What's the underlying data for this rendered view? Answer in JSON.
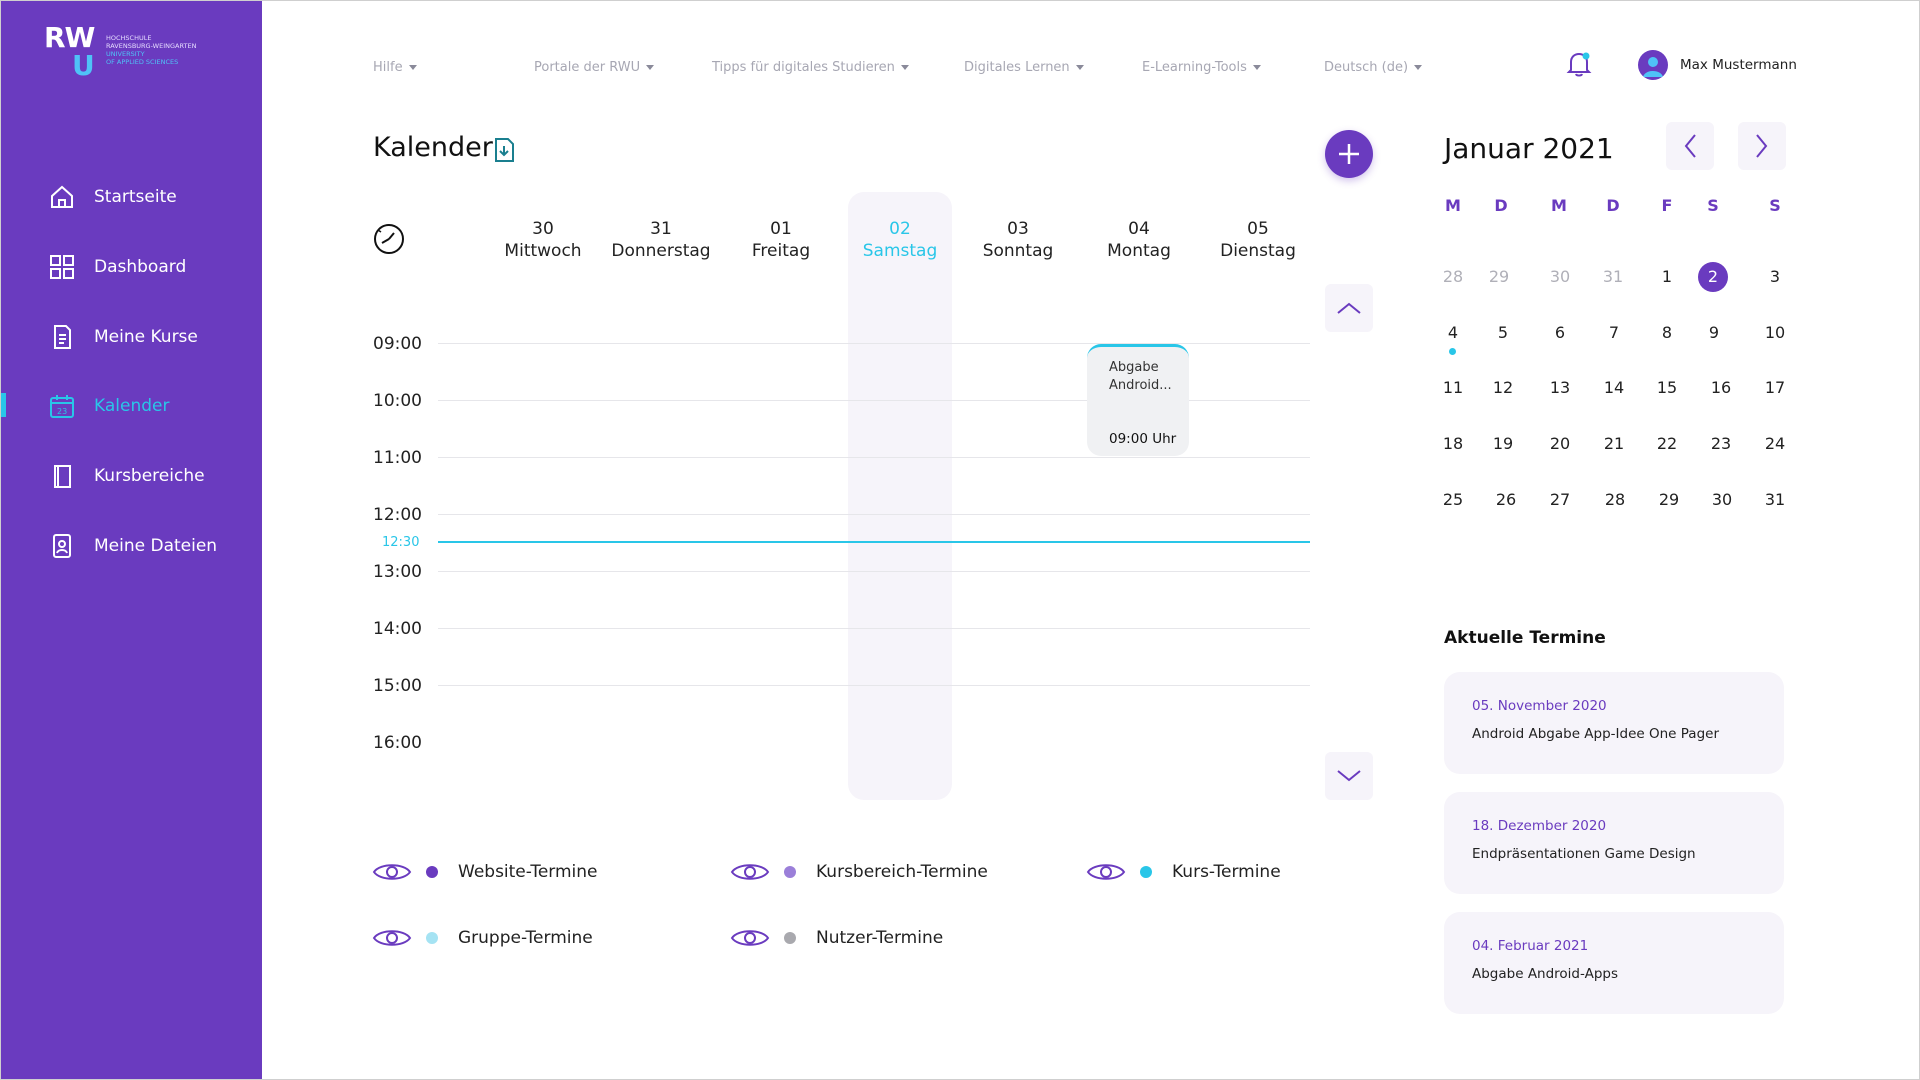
{
  "brand": {
    "logo_mark_top": "RW",
    "logo_mark_bottom": "U",
    "logo_lines": [
      "HOCHSCHULE",
      "RAVENSBURG-WEINGARTEN",
      "UNIVERSITY",
      "OF APPLIED SCIENCES"
    ]
  },
  "colors": {
    "primary": "#6a3bbf",
    "accent": "#29c6e8",
    "today_bg": "#f6f4fa"
  },
  "sidebar": {
    "items": [
      {
        "label": "Startseite",
        "icon": "home-icon"
      },
      {
        "label": "Dashboard",
        "icon": "dashboard-icon"
      },
      {
        "label": "Meine Kurse",
        "icon": "document-icon"
      },
      {
        "label": "Kalender",
        "icon": "calendar-icon",
        "active": true
      },
      {
        "label": "Kursbereiche",
        "icon": "book-icon"
      },
      {
        "label": "Meine Dateien",
        "icon": "files-icon"
      }
    ]
  },
  "topnav": {
    "items": [
      "Hilfe",
      "Portale der RWU",
      "Tipps für digitales Studieren",
      "Digitales Lernen",
      "E-Learning-Tools",
      "Deutsch (de)"
    ],
    "user_name": "Max Mustermann"
  },
  "calendar": {
    "title": "Kalender",
    "days": [
      {
        "num": "30",
        "name": "Mittwoch"
      },
      {
        "num": "31",
        "name": "Donnerstag"
      },
      {
        "num": "01",
        "name": "Freitag"
      },
      {
        "num": "02",
        "name": "Samstag",
        "today": true
      },
      {
        "num": "03",
        "name": "Sonntag"
      },
      {
        "num": "04",
        "name": "Montag"
      },
      {
        "num": "05",
        "name": "Dienstag"
      }
    ],
    "times": [
      "09:00",
      "10:00",
      "11:00",
      "12:00",
      "13:00",
      "14:00",
      "15:00",
      "16:00"
    ],
    "now_label": "12:30",
    "event": {
      "title": "Abgabe Android...",
      "time": "09:00 Uhr"
    }
  },
  "legend": [
    {
      "label": "Website-Termine",
      "color": "#6a3bbf"
    },
    {
      "label": "Kursbereich-Termine",
      "color": "#9b7fd9"
    },
    {
      "label": "Kurs-Termine",
      "color": "#29c6e8"
    },
    {
      "label": "Gruppe-Termine",
      "color": "#a5e3f3"
    },
    {
      "label": "Nutzer-Termine",
      "color": "#a9a9ae"
    }
  ],
  "mini_calendar": {
    "month_title": "Januar 2021",
    "weekdays": [
      "M",
      "D",
      "M",
      "D",
      "F",
      "S",
      "S"
    ],
    "weeks": [
      [
        "28",
        "29",
        "30",
        "31",
        "1",
        "2",
        "3"
      ],
      [
        "4",
        "5",
        "6",
        "7",
        "8",
        "9",
        "10"
      ],
      [
        "11",
        "12",
        "13",
        "14",
        "15",
        "16",
        "17"
      ],
      [
        "18",
        "19",
        "20",
        "21",
        "22",
        "23",
        "24"
      ],
      [
        "25",
        "26",
        "27",
        "28",
        "29",
        "30",
        "31"
      ]
    ],
    "selected_day": "2"
  },
  "aktuelle_termine": {
    "title": "Aktuelle Termine",
    "items": [
      {
        "date": "05. November 2020",
        "name": "Android Abgabe App-Idee One Pager"
      },
      {
        "date": "18. Dezember 2020",
        "name": "Endpräsentationen Game Design"
      },
      {
        "date": "04. Februar 2021",
        "name": "Abgabe Android-Apps"
      }
    ]
  }
}
